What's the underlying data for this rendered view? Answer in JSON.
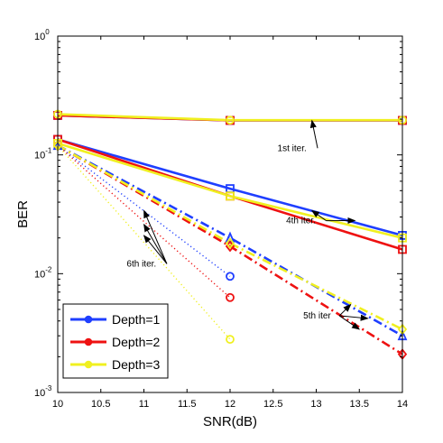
{
  "chart_data": {
    "type": "line",
    "title": "",
    "xlabel": "SNR(dB)",
    "ylabel": "BER",
    "xlim": [
      10,
      14
    ],
    "ylim": [
      0.001,
      1
    ],
    "yscale": "log",
    "grid": false,
    "legend_position": "bottom-left",
    "x_ticks": [
      "10",
      "10.5",
      "11",
      "11.5",
      "12",
      "12.5",
      "13",
      "13.5",
      "14"
    ],
    "y_ticks": [
      {
        "base": "10",
        "exp": "0",
        "value": 1
      },
      {
        "base": "10",
        "exp": "-1",
        "value": 0.1
      },
      {
        "base": "10",
        "exp": "-2",
        "value": 0.01
      },
      {
        "base": "10",
        "exp": "-3",
        "value": 0.001
      }
    ],
    "legend": [
      {
        "name": "Depth=1",
        "color": "#1f3fff"
      },
      {
        "name": "Depth=2",
        "color": "#ee1111"
      },
      {
        "name": "Depth=3",
        "color": "#f0f020"
      }
    ],
    "series": [
      {
        "depth": "Depth=1",
        "iteration": "1st",
        "style": "solid",
        "marker": "square",
        "color": "#1f3fff",
        "x": [
          10,
          12,
          14
        ],
        "y": [
          0.215,
          0.195,
          0.195
        ]
      },
      {
        "depth": "Depth=2",
        "iteration": "1st",
        "style": "solid",
        "marker": "square",
        "color": "#ee1111",
        "x": [
          10,
          12,
          14
        ],
        "y": [
          0.215,
          0.195,
          0.195
        ]
      },
      {
        "depth": "Depth=3",
        "iteration": "1st",
        "style": "solid",
        "marker": "circle",
        "color": "#f0f020",
        "x": [
          10,
          12,
          14
        ],
        "y": [
          0.22,
          0.196,
          0.196
        ]
      },
      {
        "depth": "Depth=1",
        "iteration": "4th",
        "style": "solid",
        "marker": "square",
        "color": "#1f3fff",
        "x": [
          10,
          12,
          14
        ],
        "y": [
          0.135,
          0.052,
          0.021
        ]
      },
      {
        "depth": "Depth=2",
        "iteration": "4th",
        "style": "solid",
        "marker": "square",
        "color": "#ee1111",
        "x": [
          10,
          12,
          14
        ],
        "y": [
          0.135,
          0.045,
          0.016
        ]
      },
      {
        "depth": "Depth=3",
        "iteration": "4th",
        "style": "solid",
        "marker": "square",
        "color": "#f0f020",
        "x": [
          10,
          12,
          14
        ],
        "y": [
          0.125,
          0.045,
          0.02
        ]
      },
      {
        "depth": "Depth=1",
        "iteration": "5th",
        "style": "dashdot",
        "marker": "triangle",
        "color": "#1f3fff",
        "x": [
          10,
          12,
          14
        ],
        "y": [
          0.12,
          0.02,
          0.003
        ]
      },
      {
        "depth": "Depth=2",
        "iteration": "5th",
        "style": "dashdot",
        "marker": "diamond",
        "color": "#ee1111",
        "x": [
          10,
          12,
          14
        ],
        "y": [
          0.12,
          0.017,
          0.0021
        ]
      },
      {
        "depth": "Depth=3",
        "iteration": "5th",
        "style": "dashdot",
        "marker": "diamond",
        "color": "#f0f020",
        "x": [
          10,
          12,
          14
        ],
        "y": [
          0.12,
          0.018,
          0.0034
        ]
      },
      {
        "depth": "Depth=1",
        "iteration": "6th",
        "style": "dotted",
        "marker": "circle",
        "color": "#1f3fff",
        "x": [
          10,
          12
        ],
        "y": [
          0.12,
          0.0095
        ]
      },
      {
        "depth": "Depth=2",
        "iteration": "6th",
        "style": "dotted",
        "marker": "circle",
        "color": "#ee1111",
        "x": [
          10,
          12
        ],
        "y": [
          0.12,
          0.0063
        ]
      },
      {
        "depth": "Depth=3",
        "iteration": "6th",
        "style": "dotted",
        "marker": "circle",
        "color": "#f0f020",
        "x": [
          10,
          12
        ],
        "y": [
          0.12,
          0.0028
        ]
      }
    ],
    "annotations": [
      {
        "text": "1st iter.",
        "x": 12.55,
        "y": 0.108,
        "targets": [
          {
            "x": 12.95,
            "y": 0.195
          }
        ]
      },
      {
        "text": "4th iter.",
        "x": 12.65,
        "y": 0.0265,
        "targets": [
          {
            "x": 12.95,
            "y": 0.034
          },
          {
            "x": 13.45,
            "y": 0.028
          }
        ]
      },
      {
        "text": "6th iter.",
        "x": 10.8,
        "y": 0.0115,
        "targets": [
          {
            "x": 11.0,
            "y": 0.034
          },
          {
            "x": 11.0,
            "y": 0.026
          },
          {
            "x": 11.0,
            "y": 0.021
          }
        ]
      },
      {
        "text": "5th iter",
        "x": 12.85,
        "y": 0.0042,
        "targets": [
          {
            "x": 13.4,
            "y": 0.0055
          },
          {
            "x": 13.6,
            "y": 0.0042
          },
          {
            "x": 13.5,
            "y": 0.0034
          }
        ]
      }
    ]
  }
}
